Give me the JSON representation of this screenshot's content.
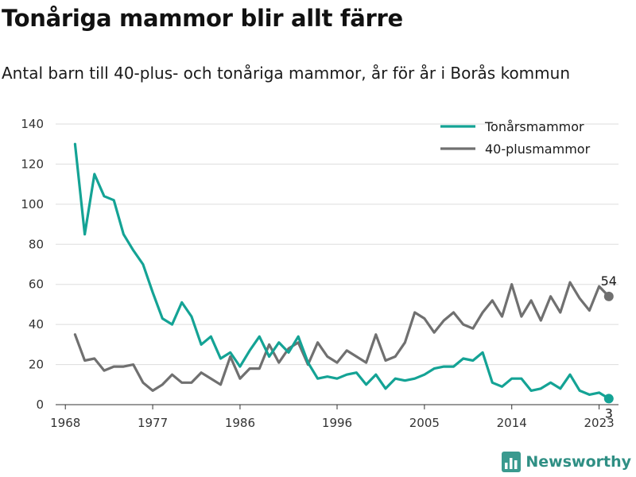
{
  "header": {
    "title": "Tonåriga mammor blir allt färre",
    "subtitle": "Antal barn till 40-plus- och tonåriga mammor, år för år i Borås kommun"
  },
  "brand": {
    "name": "Newsworthy",
    "icon": "bar-chart-logo-icon"
  },
  "colors": {
    "teen": "#14a395",
    "forty": "#707070",
    "grid": "#dddddd",
    "axis": "#333333"
  },
  "chart_data": {
    "type": "line",
    "x": [
      1969,
      1970,
      1971,
      1972,
      1973,
      1974,
      1975,
      1976,
      1977,
      1978,
      1979,
      1980,
      1981,
      1982,
      1983,
      1984,
      1985,
      1986,
      1987,
      1988,
      1989,
      1990,
      1991,
      1992,
      1993,
      1994,
      1995,
      1996,
      1997,
      1998,
      1999,
      2000,
      2001,
      2002,
      2003,
      2004,
      2005,
      2006,
      2007,
      2008,
      2009,
      2010,
      2011,
      2012,
      2013,
      2014,
      2015,
      2016,
      2017,
      2018,
      2019,
      2020,
      2021,
      2022,
      2023,
      2024
    ],
    "series": [
      {
        "name": "Tonårsmammor",
        "color": "#14a395",
        "values": [
          130,
          85,
          115,
          104,
          102,
          85,
          77,
          70,
          56,
          43,
          40,
          51,
          44,
          30,
          34,
          23,
          26,
          19,
          27,
          34,
          24,
          31,
          26,
          34,
          21,
          13,
          14,
          13,
          15,
          16,
          10,
          15,
          8,
          13,
          12,
          13,
          15,
          18,
          19,
          19,
          23,
          22,
          26,
          11,
          9,
          13,
          13,
          7,
          8,
          11,
          8,
          15,
          7,
          5,
          6,
          3
        ]
      },
      {
        "name": "40-plusmammor",
        "color": "#707070",
        "values": [
          35,
          22,
          23,
          17,
          19,
          19,
          20,
          11,
          7,
          10,
          15,
          11,
          11,
          16,
          13,
          10,
          24,
          13,
          18,
          18,
          30,
          21,
          28,
          31,
          20,
          31,
          24,
          21,
          27,
          24,
          21,
          35,
          22,
          24,
          31,
          46,
          43,
          36,
          42,
          46,
          40,
          38,
          46,
          52,
          44,
          60,
          44,
          52,
          42,
          54,
          46,
          61,
          53,
          47,
          59,
          54
        ]
      }
    ],
    "x_ticks": [
      1968,
      1977,
      1986,
      1996,
      2005,
      2014,
      2023
    ],
    "y_ticks": [
      0,
      20,
      40,
      60,
      80,
      100,
      120,
      140
    ],
    "xlim": [
      1967,
      2025
    ],
    "ylim": [
      0,
      140
    ],
    "end_labels": [
      {
        "series": "40-plusmammor",
        "x": 2024,
        "y": 54,
        "text": "54"
      },
      {
        "series": "Tonårsmammor",
        "x": 2024,
        "y": 3,
        "text": "3"
      }
    ],
    "legend_position": "top-right",
    "grid": "horizontal",
    "title": "",
    "xlabel": "",
    "ylabel": ""
  }
}
